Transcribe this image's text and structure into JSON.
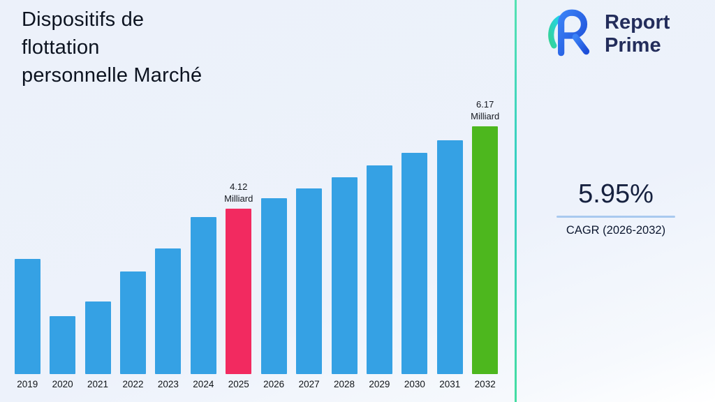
{
  "title": {
    "lines": [
      "Dispositifs de",
      "flottation",
      "personnelle Marché"
    ]
  },
  "brand": {
    "name_line1": "Report",
    "name_line2": "Prime"
  },
  "stat": {
    "value": "5.95%",
    "caption": "CAGR (2026-2032)"
  },
  "chart_data": {
    "type": "bar",
    "title": "Dispositifs de flottation personnelle Marché",
    "categories": [
      "2019",
      "2020",
      "2021",
      "2022",
      "2023",
      "2024",
      "2025",
      "2026",
      "2027",
      "2028",
      "2029",
      "2030",
      "2031",
      "2032"
    ],
    "values": [
      2.87,
      1.44,
      1.8,
      2.55,
      3.12,
      3.9,
      4.12,
      4.37,
      4.62,
      4.9,
      5.19,
      5.5,
      5.82,
      6.17
    ],
    "unit": "Milliard",
    "xlabel": "",
    "ylabel": "",
    "ylim": [
      0,
      6.6
    ],
    "grid": false,
    "legend": "none",
    "default_bar_color": "#35a1e4",
    "highlight_bars": [
      {
        "category": "2025",
        "color": "#f22a60",
        "label_lines": [
          "4.12",
          "Milliard"
        ]
      },
      {
        "category": "2032",
        "color": "#4db71e",
        "label_lines": [
          "6.17",
          "Milliard"
        ]
      }
    ]
  },
  "colors": {
    "separator_teal": "#3fd8ad",
    "brand_navy": "#232d5b",
    "stat_underline": "#a9c9ef",
    "background": "#edf1fa"
  }
}
